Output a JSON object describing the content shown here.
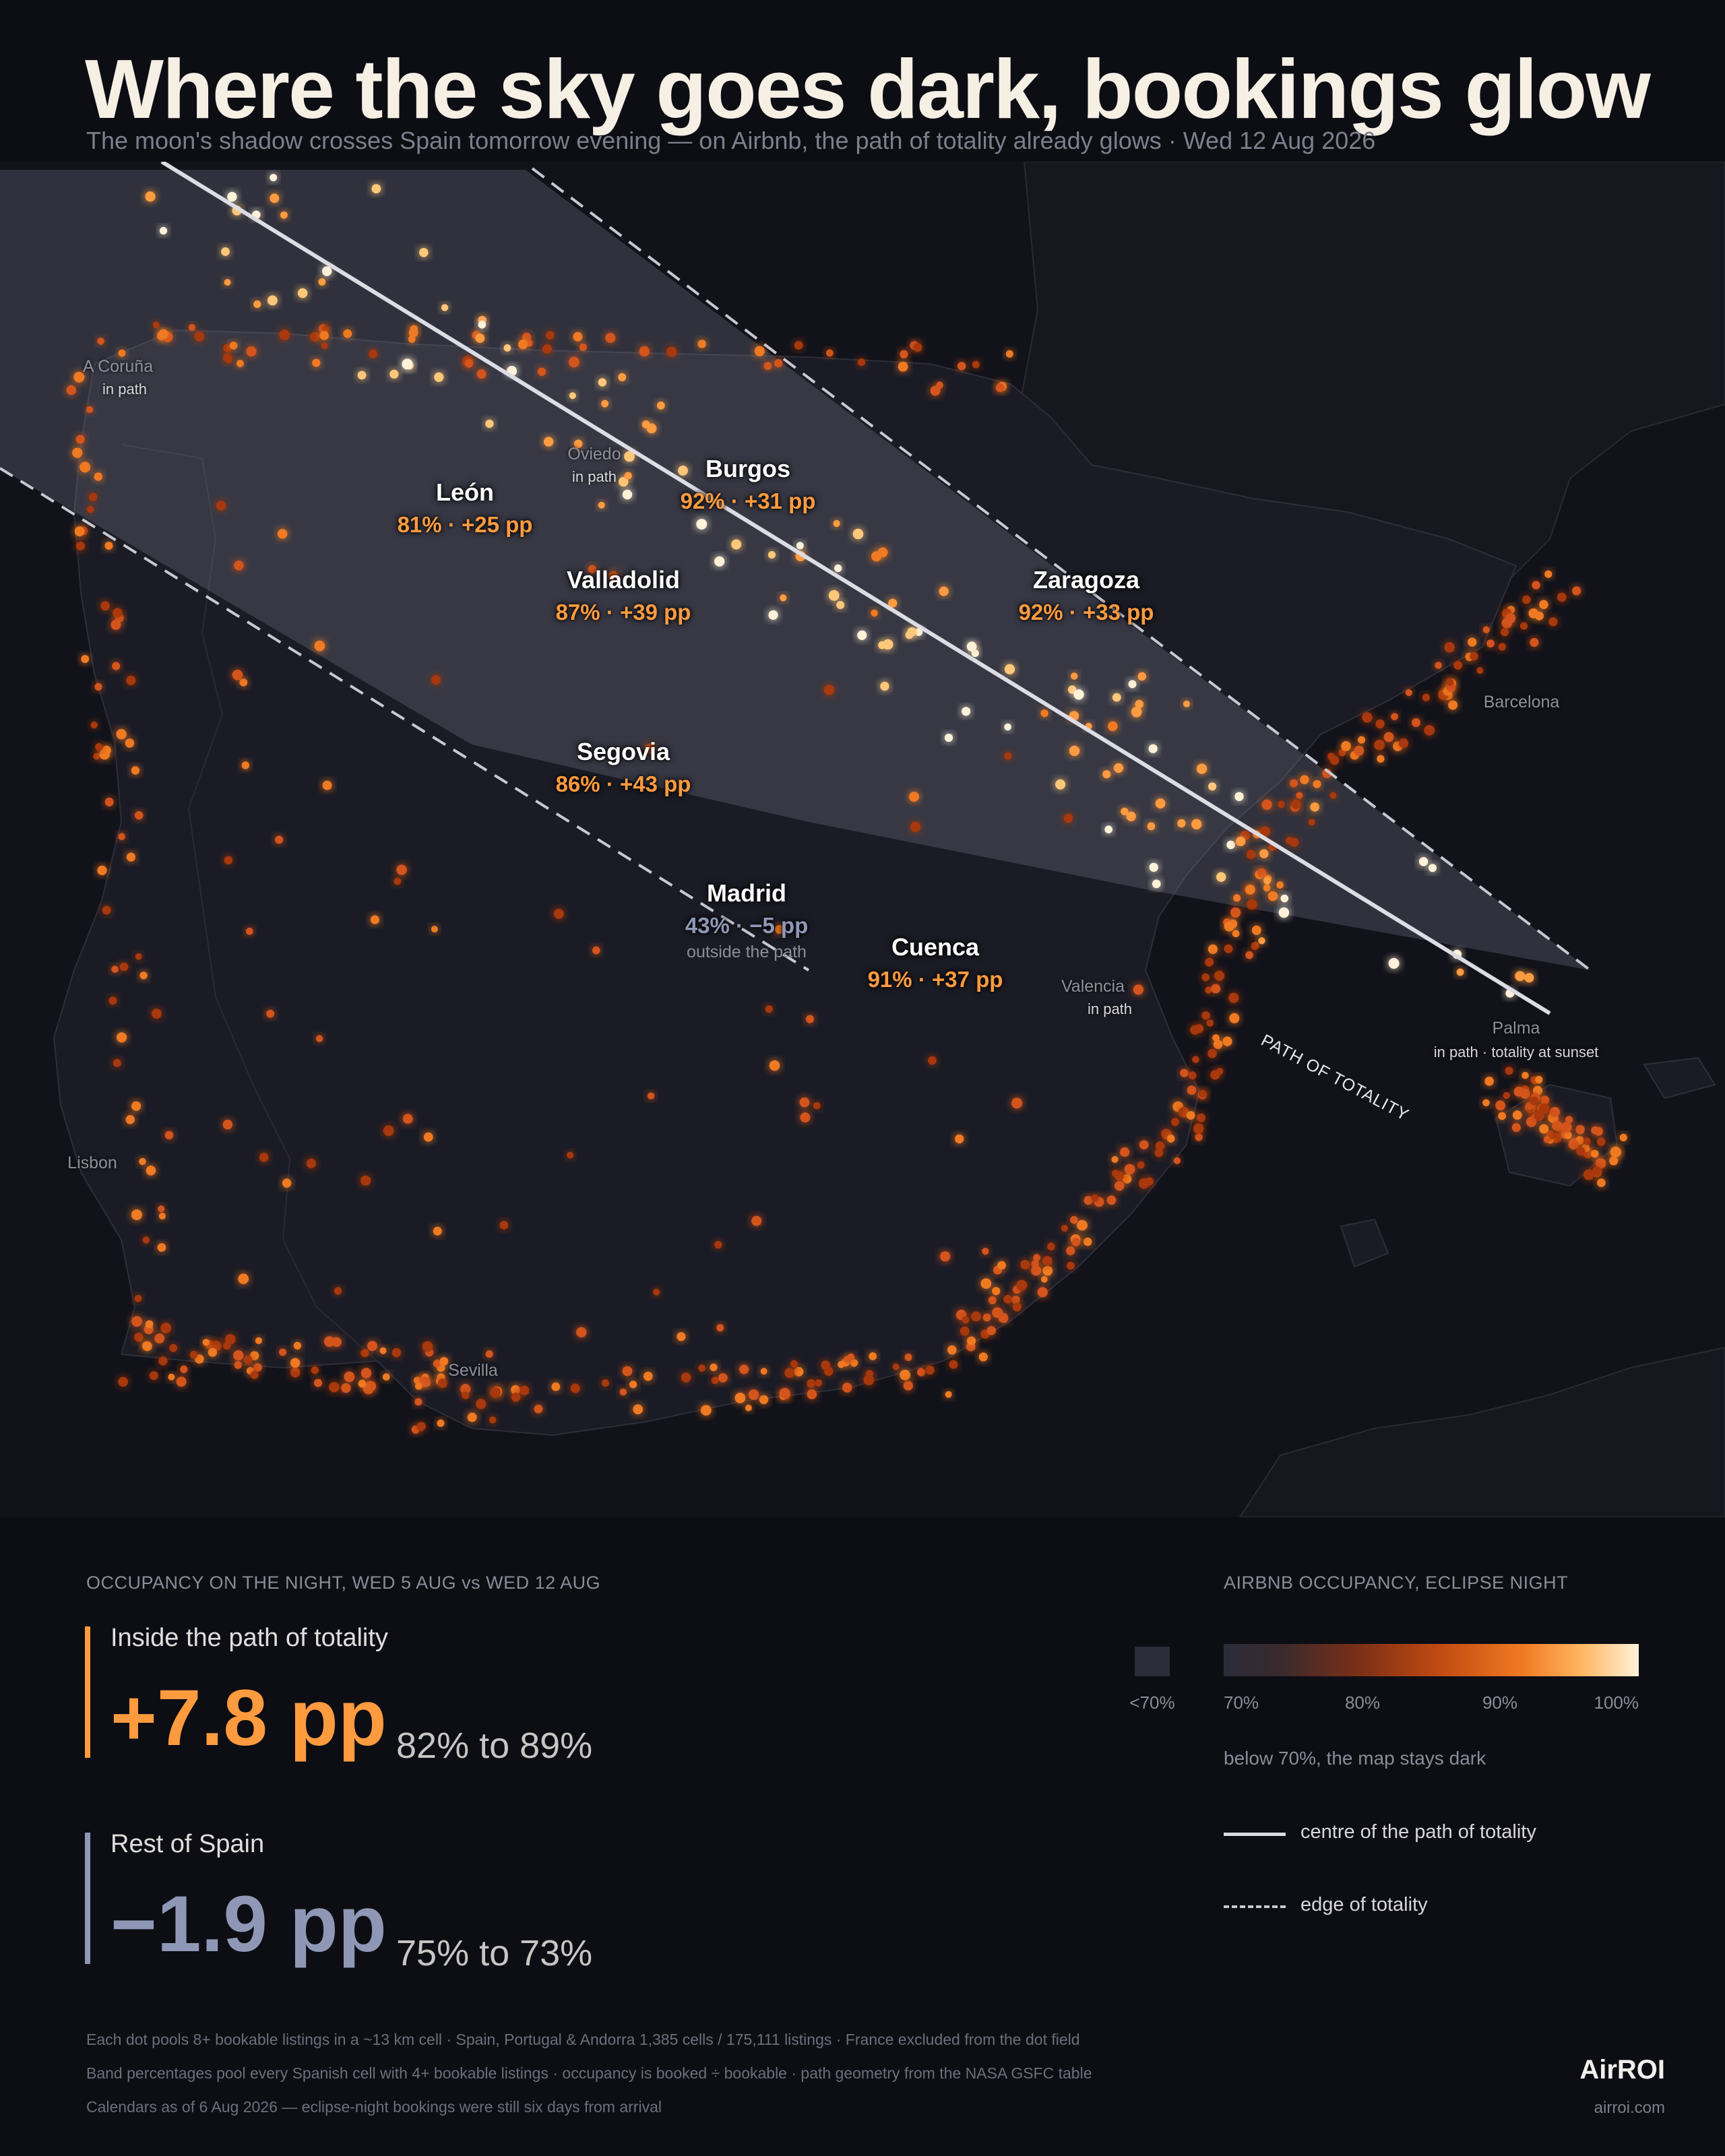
{
  "header": {
    "title": "Where the sky goes dark, bookings glow",
    "subtitle": "The moon's shadow crosses Spain tomorrow evening — on Airbnb, the path of totality already glows  ·  Wed 12 Aug 2026"
  },
  "map": {
    "path_label": "PATH OF TOTALITY",
    "cities": [
      {
        "name": "León",
        "stat": "81% · +25 pp",
        "occupancy_pct": 81,
        "change_pp": 25
      },
      {
        "name": "Burgos",
        "stat": "92% · +31 pp",
        "occupancy_pct": 92,
        "change_pp": 31
      },
      {
        "name": "Valladolid",
        "stat": "87% · +39 pp",
        "occupancy_pct": 87,
        "change_pp": 39
      },
      {
        "name": "Zaragoza",
        "stat": "92% · +33 pp",
        "occupancy_pct": 92,
        "change_pp": 33
      },
      {
        "name": "Segovia",
        "stat": "86% · +43 pp",
        "occupancy_pct": 86,
        "change_pp": 43
      },
      {
        "name": "Madrid",
        "stat": "43% · −5 pp",
        "note": "outside the path",
        "occupancy_pct": 43,
        "change_pp": -5
      },
      {
        "name": "Cuenca",
        "stat": "91% · +37 pp",
        "occupancy_pct": 91,
        "change_pp": 37
      }
    ],
    "places": [
      {
        "name": "A Coruña",
        "note": "in path"
      },
      {
        "name": "Oviedo",
        "note": "in path"
      },
      {
        "name": "Valencia",
        "note": "in path"
      },
      {
        "name": "Palma",
        "note": "in path · totality at sunset"
      },
      {
        "name": "Barcelona"
      },
      {
        "name": "Lisbon"
      },
      {
        "name": "Sevilla"
      }
    ]
  },
  "stats": {
    "section_label": "OCCUPANCY ON THE NIGHT, WED 5 AUG vs WED 12 AUG",
    "inside": {
      "label": "Inside the path of totality",
      "value": "+7.8 pp",
      "range": "82% to 89%"
    },
    "rest": {
      "label": "Rest of Spain",
      "value": "−1.9 pp",
      "range": "75% to 73%"
    }
  },
  "legend": {
    "title": "AIRBNB OCCUPANCY, ECLIPSE NIGHT",
    "low_label": "<70%",
    "ticks": [
      "70%",
      "80%",
      "90%",
      "100%"
    ],
    "note": "below 70%, the map stays dark",
    "centre_line": "centre of the path of totality",
    "edge_line": "edge of totality",
    "colors": {
      "dark": "#2b2c3a",
      "mid": "#c14a12",
      "high": "#ff9b3f",
      "max": "#fff2d8",
      "path": "#dcdce4"
    }
  },
  "footnotes": [
    "Each dot pools 8+ bookable listings in a ~13 km cell  ·  Spain, Portugal & Andorra 1,385 cells / 175,111 listings  ·  France excluded from the dot field",
    "Band percentages pool every Spanish cell with 4+ bookable listings  ·  occupancy is booked ÷ bookable  ·  path geometry from the NASA GSFC table",
    "Calendars as of 6 Aug 2026 — eclipse-night bookings were still six days from arrival"
  ],
  "brand": {
    "name": "AirROI",
    "url": "airroi.com"
  }
}
